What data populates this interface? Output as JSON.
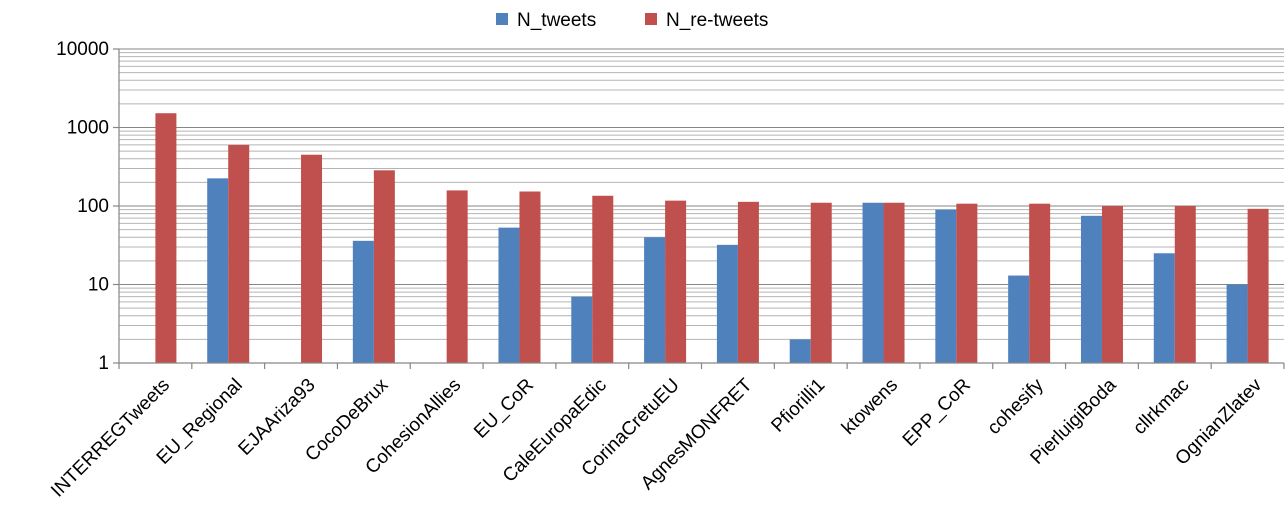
{
  "chart_data": {
    "type": "bar",
    "title": "",
    "xlabel": "",
    "ylabel": "",
    "y_scale": "log",
    "ylim": [
      1,
      10000
    ],
    "y_ticks": [
      "1",
      "10",
      "100",
      "1000",
      "10000"
    ],
    "grid": "horizontal major and minor",
    "legend_position": "top-center",
    "categories": [
      "INTERREGTweets",
      "EU_Regional",
      "EJAAriza93",
      "CocoDeBrux",
      "CohesionAllies",
      "EU_CoR",
      "CaleEuropaEdic",
      "CorinaCretuEU",
      "AgnesMONFRET",
      "Pfiorilli1",
      "ktowens",
      "EPP_CoR",
      "cohesify",
      "PierluigiBoda",
      "cllrkmac",
      "OgnianZlatev"
    ],
    "series": [
      {
        "name": "N_tweets",
        "color": "#4f81bd",
        "values": [
          null,
          225,
          null,
          36,
          null,
          53,
          7,
          40,
          32,
          2,
          110,
          90,
          13,
          75,
          25,
          10
        ]
      },
      {
        "name": "N_re-tweets",
        "color": "#c0504d",
        "values": [
          1520,
          600,
          450,
          285,
          158,
          153,
          135,
          117,
          113,
          110,
          110,
          107,
          107,
          100,
          100,
          92
        ]
      }
    ]
  }
}
